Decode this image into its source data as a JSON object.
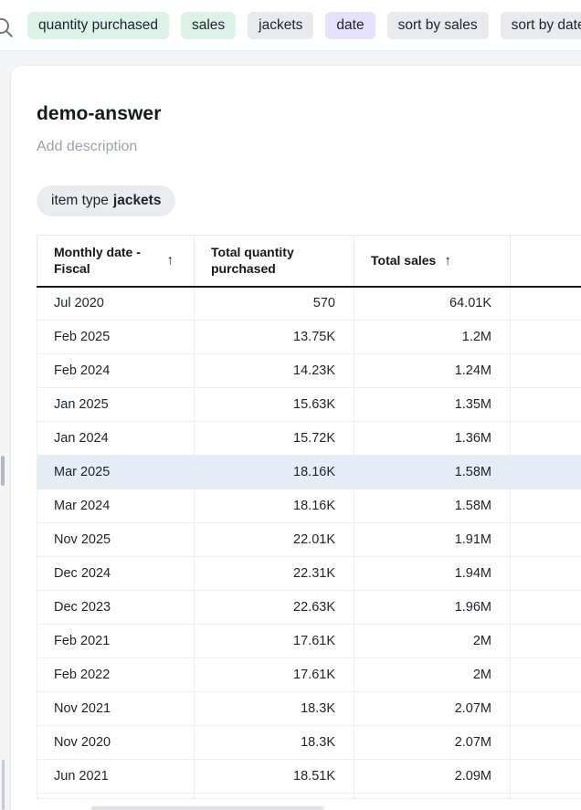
{
  "search_bar": {
    "icons": {
      "search": "magnifier",
      "sort_ascending": "↑"
    },
    "chips": [
      {
        "label": "quantity purchased",
        "color": "green"
      },
      {
        "label": "sales",
        "color": "green"
      },
      {
        "label": "jackets",
        "color": "gray"
      },
      {
        "label": "date",
        "color": "purple"
      },
      {
        "label": "sort by sales",
        "color": "gray"
      },
      {
        "label": "sort by date",
        "color": "gray"
      }
    ]
  },
  "card": {
    "title": "demo-answer",
    "description_placeholder": "Add description",
    "filter_chip": {
      "prefix": "item type",
      "value": "jackets"
    }
  },
  "table": {
    "columns": [
      {
        "label": "Monthly date - Fiscal",
        "sorted_ascending": true
      },
      {
        "label": "Total quantity purchased",
        "sorted_ascending": false
      },
      {
        "label": "Total sales",
        "sorted_ascending": true
      },
      {
        "label": "",
        "sorted_ascending": false
      }
    ],
    "rows": [
      [
        "Jul 2020",
        "570",
        "64.01K"
      ],
      [
        "Feb 2025",
        "13.75K",
        "1.2M"
      ],
      [
        "Feb 2024",
        "14.23K",
        "1.24M"
      ],
      [
        "Jan 2025",
        "15.63K",
        "1.35M"
      ],
      [
        "Jan 2024",
        "15.72K",
        "1.36M"
      ],
      [
        "Mar 2025",
        "18.16K",
        "1.58M"
      ],
      [
        "Mar 2024",
        "18.16K",
        "1.58M"
      ],
      [
        "Nov 2025",
        "22.01K",
        "1.91M"
      ],
      [
        "Dec 2024",
        "22.31K",
        "1.94M"
      ],
      [
        "Dec 2023",
        "22.63K",
        "1.96M"
      ],
      [
        "Feb 2021",
        "17.61K",
        "2M"
      ],
      [
        "Feb 2022",
        "17.61K",
        "2M"
      ],
      [
        "Nov 2021",
        "18.3K",
        "2.07M"
      ],
      [
        "Nov 2020",
        "18.3K",
        "2.07M"
      ],
      [
        "Jun 2021",
        "18.51K",
        "2.09M"
      ]
    ],
    "highlighted_row_index": 5
  },
  "colors": {
    "page_background": "#f4f5f7",
    "chip_green": "#dcf2e7",
    "chip_gray": "#e9eaee",
    "chip_purple": "#e6e1fa",
    "row_highlight": "#e6ebf8",
    "header_underline": "#14171c"
  }
}
